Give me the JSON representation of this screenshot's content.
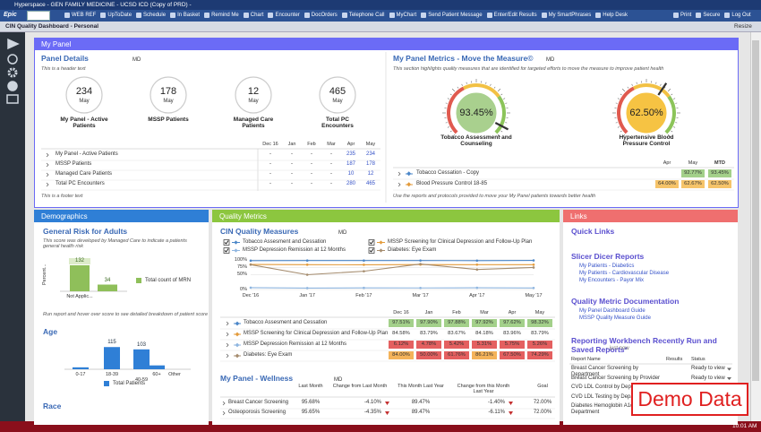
{
  "window": {
    "title": "Hyperspace - GEN FAMILY MEDICINE - UCSD ICD (Copy of PRD) -",
    "logo": "Epic",
    "toolbar": [
      "WEB REF",
      "UpToDate",
      "Schedule",
      "In Basket",
      "Remind Me",
      "Chart",
      "Encounter",
      "DocOrders",
      "Telephone Call",
      "MyChart",
      "Send Patient Message",
      "Enter/Edit Results",
      "My SmartPhrases",
      "Help Desk"
    ],
    "toolbar_right": [
      "Print",
      "Secure",
      "Log Out"
    ],
    "tab": "CIN Quality Dashboard - Personal",
    "resize": "Resize",
    "clock": "10:01 AM"
  },
  "my_panel": {
    "header": "My Panel",
    "details": {
      "title": "Panel Details",
      "badge": "MD",
      "header_text": "This is a header text",
      "footer_text": "This is a footer text",
      "circles": [
        {
          "value": "234",
          "period": "May",
          "label": "My Panel - Active Patients"
        },
        {
          "value": "178",
          "period": "May",
          "label": "MSSP Patients"
        },
        {
          "value": "12",
          "period": "May",
          "label": "Managed Care Patients"
        },
        {
          "value": "465",
          "period": "May",
          "label": "Total PC Encounters"
        }
      ],
      "table": {
        "columns": [
          "Dec 16",
          "Jan",
          "Feb",
          "Mar",
          "Apr",
          "May"
        ],
        "rows": [
          {
            "label": "My Panel - Active Patients",
            "cells": [
              "-",
              "-",
              "-",
              "-",
              "235",
              "234"
            ]
          },
          {
            "label": "MSSP Patients",
            "cells": [
              "-",
              "-",
              "-",
              "-",
              "187",
              "178"
            ]
          },
          {
            "label": "Managed Care Patients",
            "cells": [
              "-",
              "-",
              "-",
              "-",
              "10",
              "12"
            ]
          },
          {
            "label": "Total PC Encounters",
            "cells": [
              "-",
              "-",
              "-",
              "-",
              "280",
              "465"
            ]
          }
        ]
      }
    },
    "metrics": {
      "title": "My Panel Metrics - Move the Measure©",
      "badge": "MD",
      "description": "This section highlights quality measures that are identified for targeted efforts to move the measure to improve patient health",
      "gauges": [
        {
          "type": "gauge",
          "value": 93.45,
          "value_label": "93.45%",
          "range": [
            0,
            100
          ],
          "caption": "Tobacco Assessment and Counseling",
          "color": "#a9d08e"
        },
        {
          "type": "gauge",
          "value": 62.5,
          "value_label": "62.50%",
          "range": [
            0,
            100
          ],
          "caption": "Hypertensive Blood Pressure Control",
          "color": "#f6c343"
        }
      ],
      "table": {
        "columns": [
          "Apr",
          "May",
          "MTD"
        ],
        "rows": [
          {
            "label": "Tobacco Cessation - Copy",
            "color": "#4a86c8",
            "cells": [
              null,
              "92.77%",
              "93.45%"
            ],
            "cell_colors": [
              null,
              "#a3d08a",
              "#a3d08a"
            ]
          },
          {
            "label": "Blood Pressure Control 18-85",
            "color": "#e39b3b",
            "cells": [
              "64.00%",
              "62.67%",
              "62.50%"
            ],
            "cell_colors": [
              "#f6c46a",
              "#f6c46a",
              "#f6c46a"
            ]
          }
        ]
      },
      "footer": "Use the reports and protocols provided to move your My Panel patients towards better health"
    }
  },
  "demographics": {
    "header": "Demographics",
    "risk_chart": {
      "type": "bar",
      "title": "General Risk for Adults",
      "description": "This score was developed by Managed Care to indicate a patients general health risk",
      "ylabel": "Percent...",
      "categories": [
        "Not Applic...",
        null
      ],
      "values": [
        132,
        34
      ],
      "color": "#8fbf5a",
      "ylim": [
        0,
        150
      ],
      "legend": "Total count of MRN",
      "footnote": "Run report and hover over score to see detailed breakdown of patient score"
    },
    "age_chart": {
      "type": "bar",
      "title": "Age",
      "categories": [
        "0-17",
        "18-39",
        "40-59",
        "60+",
        "Other"
      ],
      "values": [
        10,
        115,
        103,
        20,
        null
      ],
      "value_labels": [
        null,
        "115",
        "103",
        null,
        null
      ],
      "color": "#2f7fd6",
      "ylim": [
        0,
        130
      ],
      "legend": "Total Patients"
    },
    "race": "Race"
  },
  "quality": {
    "header": "Quality Metrics",
    "chart": {
      "type": "line",
      "title": "CIN Quality Measures",
      "badge": "MD",
      "categories": [
        "Dec '16",
        "Jan '17",
        "Feb '17",
        "Mar '17",
        "Apr '17",
        "May '17"
      ],
      "ylim": [
        0,
        100
      ],
      "yticks": [
        {
          "value": 0,
          "label": "0%"
        },
        {
          "value": 50,
          "label": "50%"
        },
        {
          "value": 75,
          "label": "75%"
        },
        {
          "value": 100,
          "label": "100%"
        }
      ],
      "table_columns": [
        "Dec 16",
        "Jan",
        "Feb",
        "Mar",
        "Apr",
        "May"
      ],
      "series": [
        {
          "name": "Tobacco Assesment and Cessation",
          "color": "#4a86c8",
          "values": [
            97.51,
            97.9,
            97.88,
            97.92,
            97.62,
            98.32
          ],
          "value_labels": [
            "97.51%",
            "97.90%",
            "97.88%",
            "97.92%",
            "97.62%",
            "98.32%"
          ],
          "cell_colors": [
            "#a3d08a",
            "#a3d08a",
            "#a3d08a",
            "#a3d08a",
            "#a3d08a",
            "#a3d08a"
          ]
        },
        {
          "name": "MSSP Screening for Clinical Depression and Follow-Up Plan",
          "color": "#e39b3b",
          "values": [
            84.58,
            83.79,
            83.67,
            84.18,
            83.96,
            83.79
          ],
          "value_labels": [
            "84.58%",
            "83.79%",
            "83.67%",
            "84.18%",
            "83.96%",
            "83.79%"
          ],
          "cell_colors": [
            null,
            null,
            null,
            null,
            null,
            null
          ]
        },
        {
          "name": "MSSP Depression Remission at 12 Months",
          "color": "#8fb6e0",
          "values": [
            6.12,
            4.78,
            5.42,
            5.31,
            5.75,
            5.26
          ],
          "value_labels": [
            "6.12%",
            "4.78%",
            "5.42%",
            "5.31%",
            "5.75%",
            "5.26%"
          ],
          "cell_colors": [
            "#e46060",
            "#e46060",
            "#e46060",
            "#e46060",
            "#e46060",
            "#e46060"
          ]
        },
        {
          "name": "Diabetes: Eye Exam",
          "color": "#a58c6e",
          "values": [
            84.0,
            50.0,
            61.76,
            86.21,
            67.5,
            74.29
          ],
          "value_labels": [
            "84.00%",
            "50.00%",
            "61.76%",
            "86.21%",
            "67.50%",
            "74.29%"
          ],
          "cell_colors": [
            "#f4b35a",
            "#e46060",
            "#e46060",
            "#f4b35a",
            "#e46060",
            "#e46060"
          ]
        }
      ]
    },
    "wellness": {
      "title": "My Panel - Wellness",
      "badge": "MD",
      "columns": [
        "Last Month",
        "Change from Last Month",
        "This Month Last Year",
        "Change from this Month Last Year",
        "Goal"
      ],
      "rows": [
        {
          "label": "Breast Cancer Screening",
          "cells": [
            "95.68%",
            "-4.10%",
            "89.47%",
            "-1.40%",
            "72.00%"
          ]
        },
        {
          "label": "Osteoporosis Screening",
          "cells": [
            "95.65%",
            "-4.35%",
            "89.47%",
            "-6.11%",
            "72.00%"
          ]
        }
      ]
    }
  },
  "links": {
    "header": "Links",
    "quick_links": "Quick Links",
    "sections": [
      {
        "title": "Slicer Dicer Reports",
        "items": [
          "My Patients - Diabetics",
          "My Patients - Cardiovascular Disease",
          "My Encounters - Payor Mix"
        ]
      },
      {
        "title": "Quality Metric Documentation",
        "items": [
          "My Panel Dashboard Guide",
          "MSSP Quality Measure Guide"
        ]
      }
    ],
    "workbench": {
      "title": "Reporting Workbench Recently Run and Saved Reports*",
      "note": "- just now",
      "columns": [
        "Report Name",
        "Results",
        "Status"
      ],
      "rows": [
        {
          "name": "Breast Cancer Screening by Department",
          "status": "Ready to view"
        },
        {
          "name": "Breast Cancer Screening by Provider",
          "status": "Ready to view"
        },
        {
          "name": "CVD LDL Control by Department",
          "status": null
        },
        {
          "name": "CVD LDL Testing by Department",
          "status": null
        },
        {
          "name": "Diabetes Hemoglobin A1c by Department",
          "status": null
        }
      ]
    }
  },
  "watermark": "Demo Data"
}
